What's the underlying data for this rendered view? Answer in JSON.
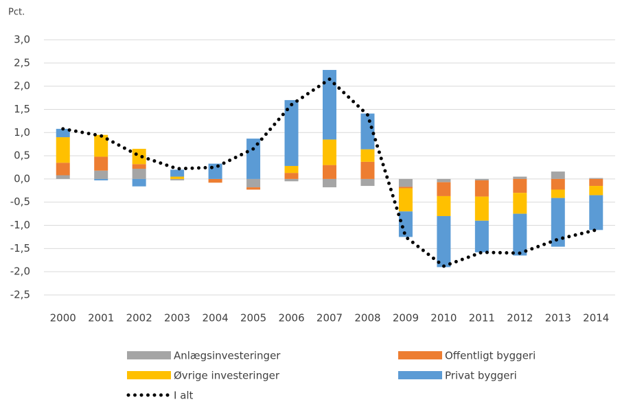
{
  "chart_data": {
    "type": "bar",
    "stacked": true,
    "y_axis_label": "Pct.",
    "categories": [
      "2000",
      "2001",
      "2002",
      "2003",
      "2004",
      "2005",
      "2006",
      "2007",
      "2008",
      "2009",
      "2010",
      "2011",
      "2012",
      "2013",
      "2014"
    ],
    "series": [
      {
        "name": "Anlægsinvesteringer",
        "color": "#a5a5a5",
        "values": [
          0.08,
          0.18,
          0.22,
          -0.03,
          0,
          -0.18,
          -0.05,
          -0.18,
          -0.15,
          -0.17,
          -0.07,
          -0.03,
          0.05,
          0.16,
          0.02
        ]
      },
      {
        "name": "Offentligt byggeri",
        "color": "#ed7d31",
        "values": [
          0.27,
          0.3,
          0.1,
          0,
          -0.08,
          -0.05,
          0.13,
          0.3,
          0.37,
          -0.03,
          -0.3,
          -0.35,
          -0.3,
          -0.23,
          -0.15
        ]
      },
      {
        "name": "Øvrige investeringer",
        "color": "#ffc000",
        "values": [
          0.55,
          0.47,
          0.33,
          0.05,
          0,
          0,
          0.15,
          0.55,
          0.27,
          -0.5,
          -0.43,
          -0.52,
          -0.45,
          -0.18,
          -0.2
        ]
      },
      {
        "name": "Privat byggeri",
        "color": "#5b9bd5",
        "values": [
          0.18,
          -0.03,
          -0.16,
          0.15,
          0.33,
          0.87,
          1.42,
          1.5,
          0.77,
          -0.55,
          -1.1,
          -0.68,
          -0.9,
          -1.05,
          -0.75
        ]
      },
      {
        "name": "I alt",
        "color": "#000000",
        "type": "line",
        "values": [
          1.08,
          0.93,
          0.5,
          0.22,
          0.25,
          0.65,
          1.6,
          2.15,
          1.38,
          -1.25,
          -1.88,
          -1.58,
          -1.6,
          -1.3,
          -1.1
        ]
      }
    ],
    "ylim": [
      -2.5,
      3.0
    ],
    "yticks": [
      {
        "value": -2.5,
        "label": "-2,5"
      },
      {
        "value": -2,
        "label": "-2,0"
      },
      {
        "value": -1.5,
        "label": "-1,5"
      },
      {
        "value": -1,
        "label": "-1,0"
      },
      {
        "value": -0.5,
        "label": "-0,5"
      },
      {
        "value": 0,
        "label": "0,0"
      },
      {
        "value": 0.5,
        "label": "0,5"
      },
      {
        "value": 1,
        "label": "1,0"
      },
      {
        "value": 1.5,
        "label": "1,5"
      },
      {
        "value": 2,
        "label": "2,0"
      },
      {
        "value": 2.5,
        "label": "2,5"
      },
      {
        "value": 3,
        "label": "3,0"
      }
    ],
    "grid": true,
    "legend": "bottom"
  }
}
